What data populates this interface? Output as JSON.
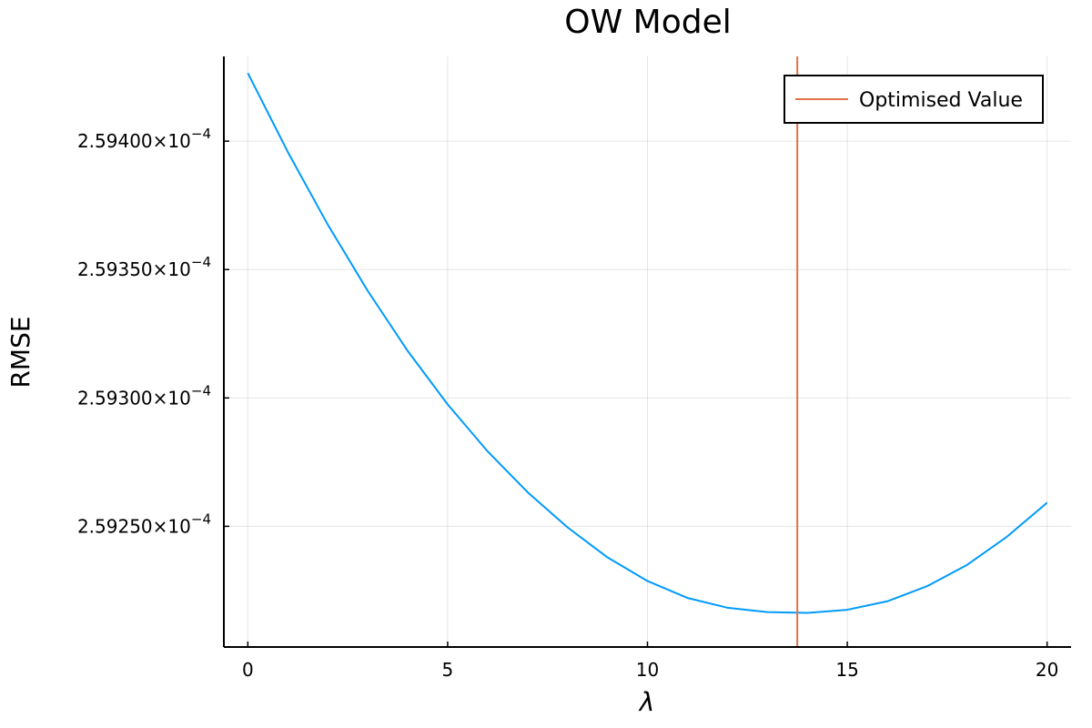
{
  "chart_data": {
    "type": "line",
    "title": "OW Model",
    "xlabel": "λ",
    "ylabel": "RMSE",
    "xlim": [
      -0.6,
      20.6
    ],
    "ylim": [
      0.000259203,
      0.000259433
    ],
    "xticks": [
      0,
      5,
      10,
      15,
      20
    ],
    "xtick_labels": [
      "0",
      "5",
      "10",
      "15",
      "20"
    ],
    "yticks": [
      0.00025925,
      0.0002593,
      0.00025935,
      0.0002594
    ],
    "ytick_labels": [
      {
        "mantissa": "2.59250×10",
        "exponent": "−4"
      },
      {
        "mantissa": "2.59300×10",
        "exponent": "−4"
      },
      {
        "mantissa": "2.59350×10",
        "exponent": "−4"
      },
      {
        "mantissa": "2.59400×10",
        "exponent": "−4"
      }
    ],
    "grid": true,
    "legend_position": "top-right",
    "series": [
      {
        "color": "#009AFA",
        "x": [
          0,
          1,
          2,
          3,
          4,
          5,
          6,
          7,
          8,
          9,
          10,
          11,
          12,
          13,
          14,
          15,
          16,
          17,
          18,
          19,
          20
        ],
        "y": [
          0.0002594265,
          0.0002593958,
          0.0002593675,
          0.0002593417,
          0.0002593183,
          0.0002592975,
          0.0002592792,
          0.0002592633,
          0.0002592496,
          0.0002592379,
          0.0002592287,
          0.0002592221,
          0.0002592183,
          0.0002592166,
          0.0002592163,
          0.0002592175,
          0.0002592208,
          0.0002592267,
          0.000259235,
          0.000259246,
          0.0002592592
        ]
      },
      {
        "name": "Optimised Value",
        "color": "#E26F46",
        "type": "vline",
        "x": 13.75
      }
    ]
  }
}
